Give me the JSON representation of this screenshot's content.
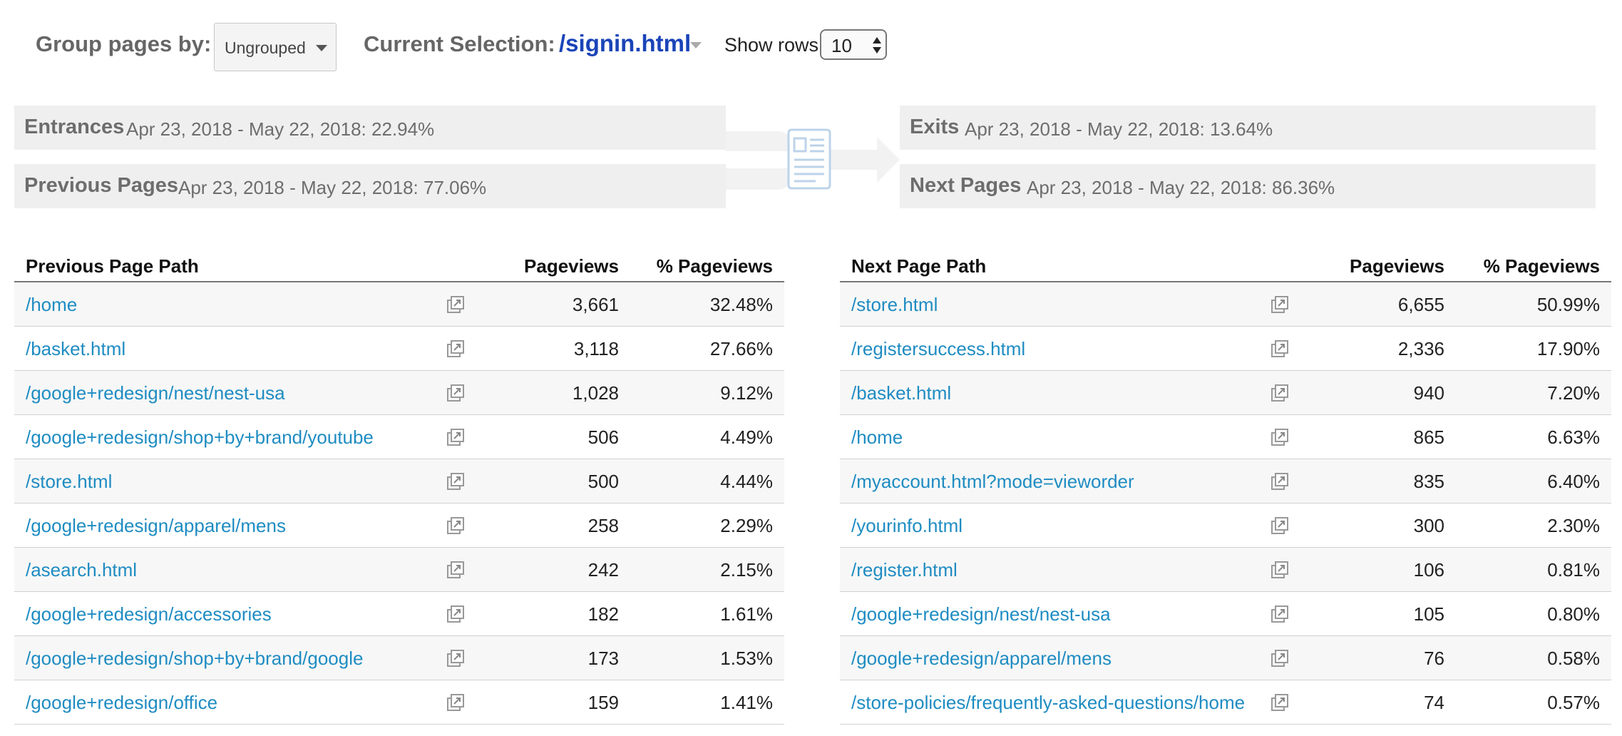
{
  "controls": {
    "group_label": "Group pages by:",
    "group_value": "Ungrouped",
    "selection_label": "Current Selection:",
    "selection_value": "/signin.html",
    "rows_label": "Show rows:",
    "rows_value": "10"
  },
  "flow": {
    "entrances": {
      "title": "Entrances",
      "value": "Apr 23, 2018 - May 22, 2018: 22.94%"
    },
    "previous": {
      "title": "Previous Pages",
      "value": "Apr 23, 2018 - May 22, 2018: 77.06%"
    },
    "exits": {
      "title": "Exits",
      "value": "Apr 23, 2018 - May 22, 2018: 13.64%"
    },
    "next": {
      "title": "Next Pages",
      "value": "Apr 23, 2018 - May 22, 2018: 86.36%"
    }
  },
  "previous_table": {
    "headers": {
      "path": "Previous Page Path",
      "pageviews": "Pageviews",
      "pct": "% Pageviews"
    },
    "rows": [
      {
        "path": "/home",
        "pageviews": "3,661",
        "pct": "32.48%"
      },
      {
        "path": "/basket.html",
        "pageviews": "3,118",
        "pct": "27.66%"
      },
      {
        "path": "/google+redesign/nest/nest-usa",
        "pageviews": "1,028",
        "pct": "9.12%"
      },
      {
        "path": "/google+redesign/shop+by+brand/youtube",
        "pageviews": "506",
        "pct": "4.49%"
      },
      {
        "path": "/store.html",
        "pageviews": "500",
        "pct": "4.44%"
      },
      {
        "path": "/google+redesign/apparel/mens",
        "pageviews": "258",
        "pct": "2.29%"
      },
      {
        "path": "/asearch.html",
        "pageviews": "242",
        "pct": "2.15%"
      },
      {
        "path": "/google+redesign/accessories",
        "pageviews": "182",
        "pct": "1.61%"
      },
      {
        "path": "/google+redesign/shop+by+brand/google",
        "pageviews": "173",
        "pct": "1.53%"
      },
      {
        "path": "/google+redesign/office",
        "pageviews": "159",
        "pct": "1.41%"
      }
    ]
  },
  "next_table": {
    "headers": {
      "path": "Next Page Path",
      "pageviews": "Pageviews",
      "pct": "% Pageviews"
    },
    "rows": [
      {
        "path": "/store.html",
        "pageviews": "6,655",
        "pct": "50.99%"
      },
      {
        "path": "/registersuccess.html",
        "pageviews": "2,336",
        "pct": "17.90%"
      },
      {
        "path": "/basket.html",
        "pageviews": "940",
        "pct": "7.20%"
      },
      {
        "path": "/home",
        "pageviews": "865",
        "pct": "6.63%"
      },
      {
        "path": "/myaccount.html?mode=vieworder",
        "pageviews": "835",
        "pct": "6.40%"
      },
      {
        "path": "/yourinfo.html",
        "pageviews": "300",
        "pct": "2.30%"
      },
      {
        "path": "/register.html",
        "pageviews": "106",
        "pct": "0.81%"
      },
      {
        "path": "/google+redesign/nest/nest-usa",
        "pageviews": "105",
        "pct": "0.80%"
      },
      {
        "path": "/google+redesign/apparel/mens",
        "pageviews": "76",
        "pct": "0.58%"
      },
      {
        "path": "/store-policies/frequently-asked-questions/home",
        "pageviews": "74",
        "pct": "0.57%"
      }
    ]
  },
  "icons": {
    "external_link": "open-in-new-window-icon",
    "page": "document-page-icon"
  },
  "colors": {
    "link": "#1f8cc2",
    "selection": "#1a44b8",
    "label_gray": "#666666",
    "flow_box": "#efefef"
  }
}
